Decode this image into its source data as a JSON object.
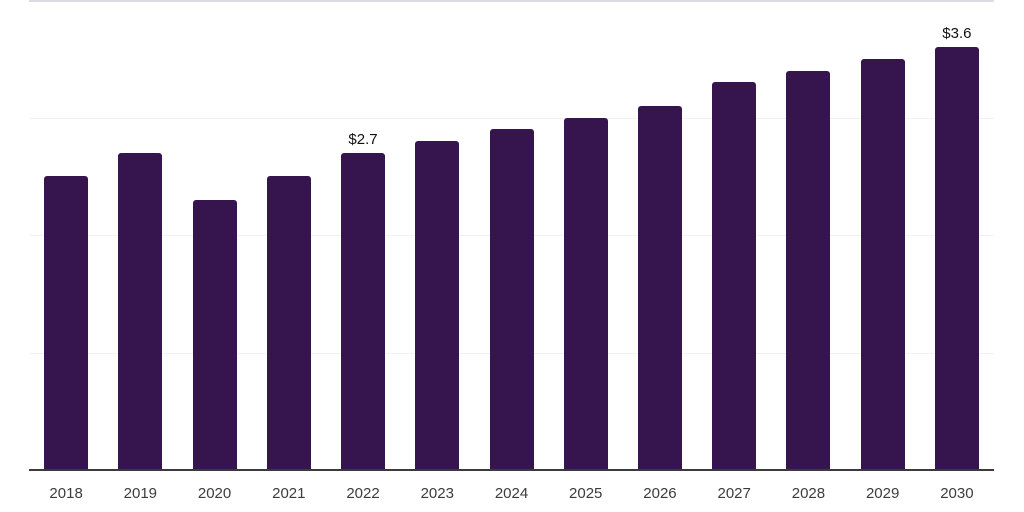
{
  "chart_data": {
    "type": "bar",
    "title": "",
    "xlabel": "",
    "ylabel": "",
    "categories": [
      "2018",
      "2019",
      "2020",
      "2021",
      "2022",
      "2023",
      "2024",
      "2025",
      "2026",
      "2027",
      "2028",
      "2029",
      "2030"
    ],
    "values": [
      2.5,
      2.7,
      2.3,
      2.5,
      2.7,
      2.8,
      2.9,
      3.0,
      3.1,
      3.3,
      3.4,
      3.5,
      3.6
    ],
    "data_labels": [
      {
        "category": "2022",
        "text": "$2.7"
      },
      {
        "category": "2030",
        "text": "$3.6"
      }
    ],
    "ylim": [
      0,
      4
    ],
    "gridlines_y": [
      1,
      2,
      3,
      4
    ],
    "grid": "on",
    "legend": "none",
    "y_axis_tick_labels_visible": false,
    "colors": {
      "bar": "#36154E",
      "axis_line": "#3B3B3F",
      "gridline": "#F2F2F5",
      "top_gridline": "#DCDCE2",
      "tick_label": "#3C3C3C",
      "data_label": "#111111",
      "background": "#FFFFFF"
    }
  }
}
